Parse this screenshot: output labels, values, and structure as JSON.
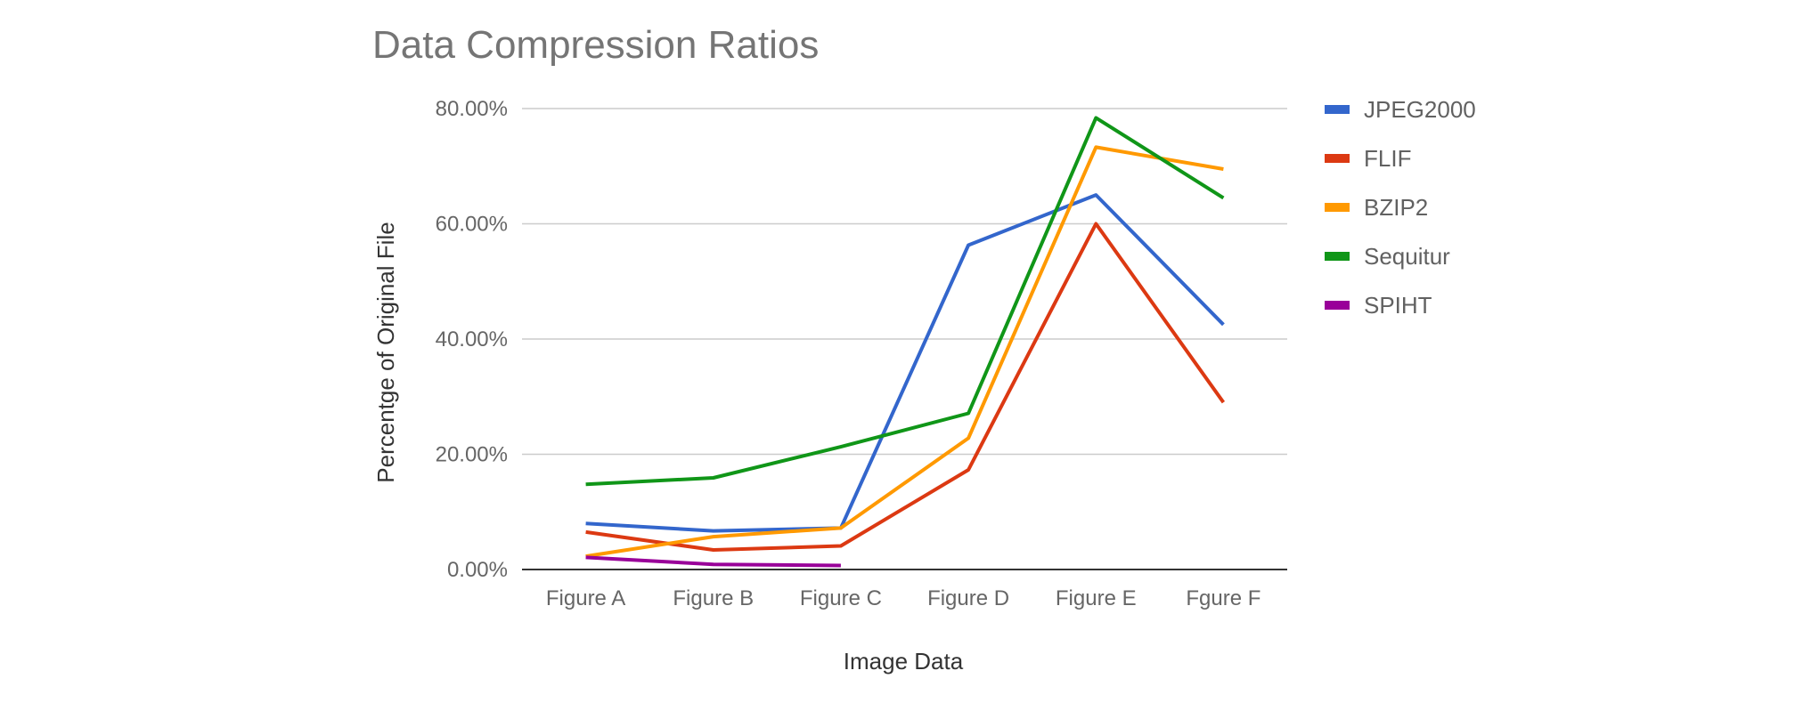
{
  "chart_data": {
    "type": "line",
    "title": "Data Compression Ratios",
    "xlabel": "Image Data",
    "ylabel": "Percentge of Original File",
    "categories": [
      "Figure A",
      "Figure B",
      "Figure C",
      "Figure D",
      "Figure E",
      "Fgure F"
    ],
    "ylim": [
      0,
      80
    ],
    "yticks": [
      0,
      20,
      40,
      60,
      80
    ],
    "ytick_labels": [
      "0.00%",
      "20.00%",
      "40.00%",
      "60.00%",
      "80.00%"
    ],
    "grid": true,
    "legend_position": "right",
    "series": [
      {
        "name": "JPEG2000",
        "color": "#3366cc",
        "values": [
          8.0,
          6.7,
          7.2,
          56.3,
          65.0,
          42.5
        ]
      },
      {
        "name": "FLIF",
        "color": "#dc3912",
        "values": [
          6.5,
          3.4,
          4.1,
          17.3,
          60.0,
          29.0
        ]
      },
      {
        "name": "BZIP2",
        "color": "#ff9900",
        "values": [
          2.3,
          5.7,
          7.2,
          22.8,
          73.3,
          69.5
        ]
      },
      {
        "name": "Sequitur",
        "color": "#109618",
        "values": [
          14.8,
          15.9,
          21.3,
          27.1,
          78.4,
          64.5
        ]
      },
      {
        "name": "SPIHT",
        "color": "#990099",
        "values": [
          2.1,
          0.9,
          0.7,
          null,
          null,
          null
        ]
      }
    ]
  }
}
